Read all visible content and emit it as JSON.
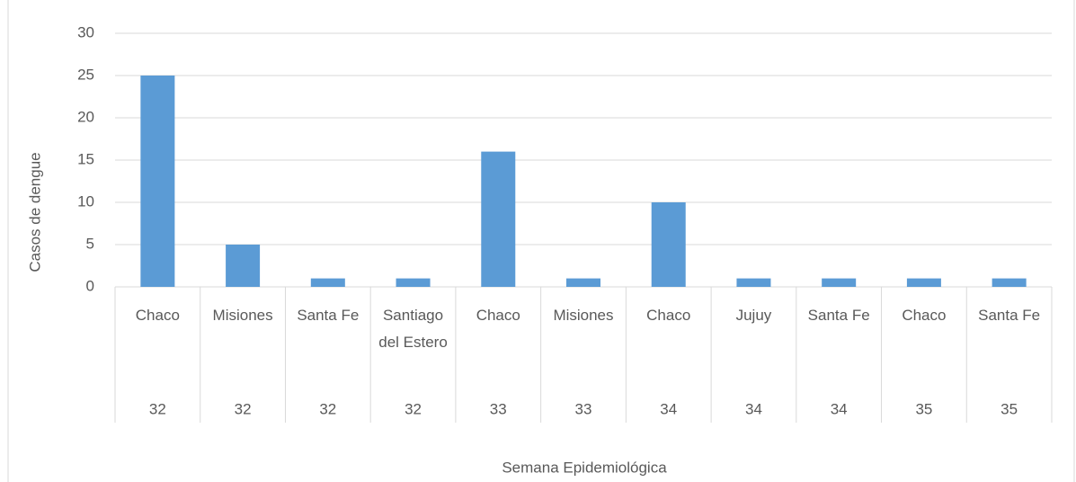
{
  "chart_data": {
    "type": "bar",
    "x_label": "Semana Epidemiológica",
    "y_label": "Casos de dengue",
    "categories": [
      "Chaco",
      "Misiones",
      "Santa Fe",
      "Santiago del Estero",
      "Chaco",
      "Misiones",
      "Chaco",
      "Jujuy",
      "Santa Fe",
      "Chaco",
      "Santa Fe"
    ],
    "category_groups": [
      "32",
      "32",
      "32",
      "32",
      "33",
      "33",
      "34",
      "34",
      "34",
      "35",
      "35"
    ],
    "values": [
      25,
      5,
      1,
      1,
      16,
      1,
      10,
      1,
      1,
      1,
      1
    ],
    "color": "#5b9bd5",
    "ylim": [
      0,
      30
    ],
    "yticks": [
      0,
      5,
      10,
      15,
      20,
      25,
      30
    ],
    "grid": true
  }
}
